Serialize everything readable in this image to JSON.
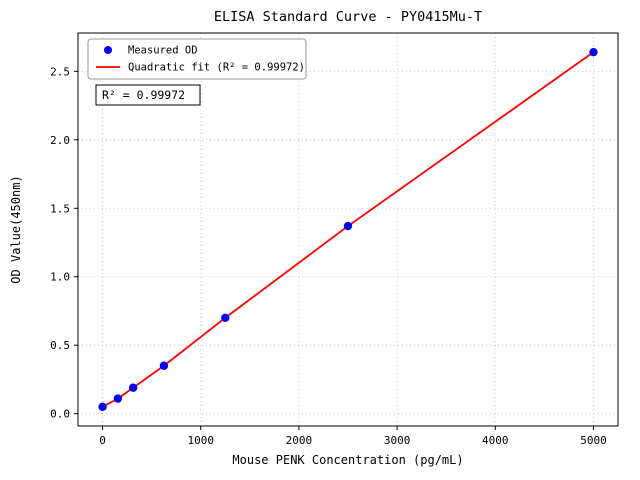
{
  "chart_data": {
    "type": "scatter",
    "title": "ELISA Standard Curve - PY0415Mu-T",
    "xlabel": "Mouse PENK Concentration (pg/mL)",
    "ylabel": "OD Value(450nm)",
    "x": [
      0,
      156,
      312,
      625,
      1250,
      2500,
      5000
    ],
    "y": [
      0.05,
      0.11,
      0.19,
      0.35,
      0.7,
      1.37,
      2.64
    ],
    "xlim": [
      -250,
      5250
    ],
    "ylim": [
      -0.09,
      2.78
    ],
    "xticks": [
      0,
      1000,
      2000,
      3000,
      4000,
      5000
    ],
    "xticklabels": [
      "0",
      "1000",
      "2000",
      "3000",
      "4000",
      "5000"
    ],
    "yticks": [
      0.0,
      0.5,
      1.0,
      1.5,
      2.0,
      2.5
    ],
    "yticklabels": [
      "0.0",
      "0.5",
      "1.0",
      "1.5",
      "2.0",
      "2.5"
    ],
    "grid": true,
    "grid_style": "dotted",
    "legend": {
      "position": "upper-left",
      "entries": [
        {
          "label": "Measured OD",
          "type": "marker",
          "color": "#0000ee"
        },
        {
          "label": "Quadratic fit (R² = 0.99972)",
          "type": "line",
          "color": "#ff0000"
        }
      ]
    },
    "annotation": "R² = 0.99972",
    "colors": {
      "marker": "#0000ee",
      "line": "#ff0000",
      "grid": "#bbbbbb",
      "border": "#000000",
      "legend_border": "#999999",
      "background": "#ffffff"
    }
  }
}
